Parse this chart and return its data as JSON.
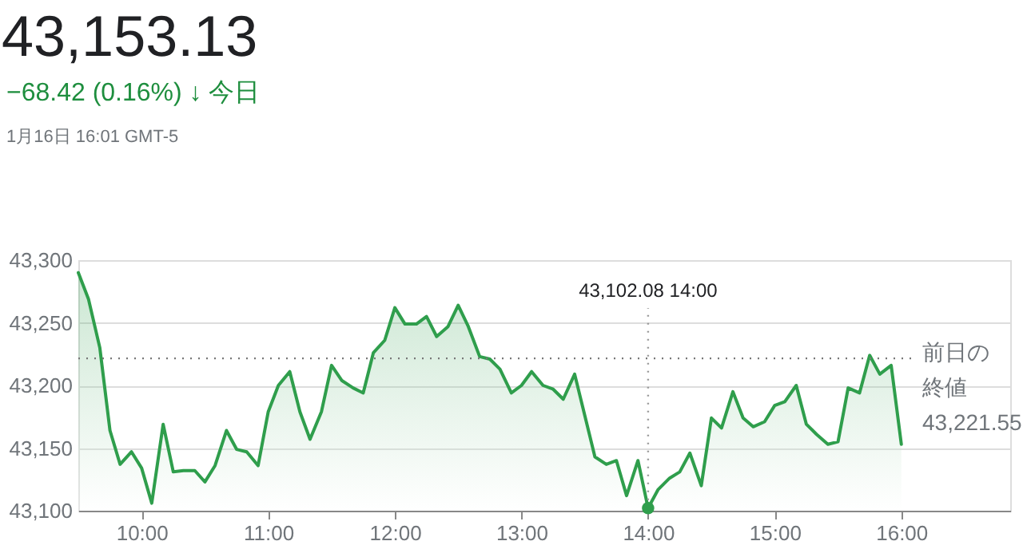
{
  "chart_data": {
    "title": "43,153.13",
    "subtitle": "−68.42 (0.16%) ↓ 今日",
    "annotations": [
      "1月16日 16:01 GMT-5",
      {
        "text": "43,102.08  14:00",
        "x": 14,
        "y": 43102.08
      }
    ],
    "type": "area",
    "x": [
      9.5,
      9.58,
      9.67,
      9.75,
      9.83,
      9.92,
      10.0,
      10.08,
      10.17,
      10.25,
      10.33,
      10.42,
      10.5,
      10.58,
      10.67,
      10.75,
      10.83,
      10.92,
      11.0,
      11.08,
      11.17,
      11.25,
      11.33,
      11.42,
      11.5,
      11.58,
      11.67,
      11.75,
      11.83,
      11.92,
      12.0,
      12.08,
      12.17,
      12.25,
      12.33,
      12.42,
      12.5,
      12.58,
      12.67,
      12.75,
      12.83,
      12.92,
      13.0,
      13.08,
      13.17,
      13.25,
      13.33,
      13.42,
      13.58,
      13.67,
      13.75,
      13.83,
      13.92,
      14.0,
      14.08,
      14.17,
      14.25,
      14.33,
      14.42,
      14.5,
      14.58,
      14.67,
      14.75,
      14.83,
      14.92,
      15.0,
      15.08,
      15.17,
      15.25,
      15.33,
      15.42,
      15.5,
      15.58,
      15.67,
      15.75,
      15.83,
      15.92,
      16.0
    ],
    "series": [
      {
        "color": "#2f9e4c",
        "values": [
          43290,
          43269,
          43230,
          43164,
          43137,
          43147,
          43134,
          43106,
          43169,
          43131,
          43132,
          43132,
          43123,
          43136,
          43164,
          43149,
          43147,
          43136,
          43179,
          43200,
          43211,
          43179,
          43157,
          43179,
          43216,
          43204,
          43198,
          43194,
          43226,
          43236,
          43262,
          43249,
          43249,
          43255,
          43239,
          43247,
          43264,
          43247,
          43223,
          43221,
          43213,
          43194,
          43200,
          43211,
          43200,
          43197,
          43189,
          43209,
          43143,
          43137,
          43140,
          43112,
          43140,
          43102.08,
          43117,
          43126,
          43131,
          43146,
          43120,
          43174,
          43166,
          43195,
          43174,
          43167,
          43171,
          43184,
          43187,
          43200,
          43169,
          43161,
          43153,
          43155,
          43198,
          43194,
          43224,
          43209,
          43216,
          43153
        ]
      }
    ],
    "xlim": [
      9.5,
      16.86
    ],
    "xticks": [
      {
        "value": 10,
        "label": "10:00"
      },
      {
        "value": 11,
        "label": "11:00"
      },
      {
        "value": 12,
        "label": "12:00"
      },
      {
        "value": 13,
        "label": "13:00"
      },
      {
        "value": 14,
        "label": "14:00"
      },
      {
        "value": 15,
        "label": "15:00"
      },
      {
        "value": 16,
        "label": "16:00"
      }
    ],
    "ylim": [
      43100,
      43300
    ],
    "yticks": [
      {
        "value": 43100,
        "label": "43,100"
      },
      {
        "value": 43150,
        "label": "43,150"
      },
      {
        "value": 43200,
        "label": "43,200"
      },
      {
        "value": 43250,
        "label": "43,250"
      },
      {
        "value": 43300,
        "label": "43,300"
      }
    ],
    "ref_lines": [
      {
        "axis": "y",
        "value": 43221.55,
        "label": "前日の終値 43,221.55",
        "color": "#777777",
        "line_style": "dotted"
      }
    ],
    "grid": "y",
    "marker": "none",
    "line_style": "solid"
  }
}
